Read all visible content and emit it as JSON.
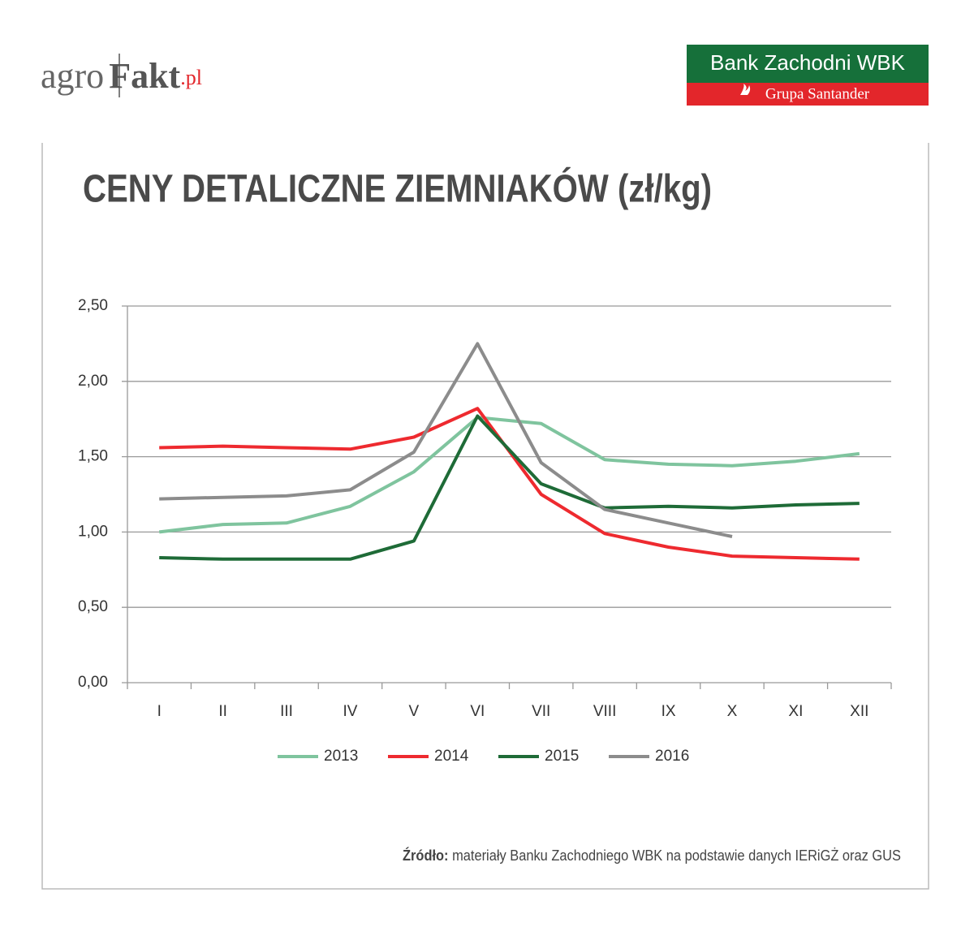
{
  "header": {
    "logo": {
      "parts": [
        "agro",
        "Fakt",
        ".pl"
      ]
    },
    "bank": {
      "name": "Bank Zachodni WBK",
      "group": "Grupa Santander"
    }
  },
  "chart_data": {
    "type": "line",
    "title": "CENY DETALICZNE ZIEMNIAKÓW (zł/kg)",
    "categories": [
      "I",
      "II",
      "III",
      "IV",
      "V",
      "VI",
      "VII",
      "VIII",
      "IX",
      "X",
      "XI",
      "XII"
    ],
    "series": [
      {
        "name": "2013",
        "color": "#7fc49e",
        "values": [
          1.0,
          1.05,
          1.06,
          1.17,
          1.4,
          1.76,
          1.72,
          1.48,
          1.45,
          1.44,
          1.47,
          1.52
        ]
      },
      {
        "name": "2014",
        "color": "#ee2a2f",
        "values": [
          1.56,
          1.57,
          1.56,
          1.55,
          1.63,
          1.82,
          1.25,
          0.99,
          0.9,
          0.84,
          0.83,
          0.82
        ]
      },
      {
        "name": "2015",
        "color": "#1e6b37",
        "values": [
          0.83,
          0.82,
          0.82,
          0.82,
          0.94,
          1.77,
          1.32,
          1.16,
          1.17,
          1.16,
          1.18,
          1.19
        ]
      },
      {
        "name": "2016",
        "color": "#8c8c8c",
        "values": [
          1.22,
          1.23,
          1.24,
          1.28,
          1.53,
          2.25,
          1.46,
          1.15,
          1.06,
          0.97,
          null,
          null
        ]
      }
    ],
    "ylim": [
      0,
      2.5
    ],
    "yticks": [
      {
        "value": 0,
        "label": "0,00"
      },
      {
        "value": 0.5,
        "label": "0,50"
      },
      {
        "value": 1,
        "label": "1,00"
      },
      {
        "value": 1.5,
        "label": "1,50"
      },
      {
        "value": 2,
        "label": "2,00"
      },
      {
        "value": 2.5,
        "label": "2,50"
      }
    ],
    "grid": true,
    "legend": "bottom"
  },
  "source": {
    "label": "Źródło:",
    "text": "materiały Banku Zachodniego WBK na podstawie danych IERiGŻ oraz GUS"
  }
}
